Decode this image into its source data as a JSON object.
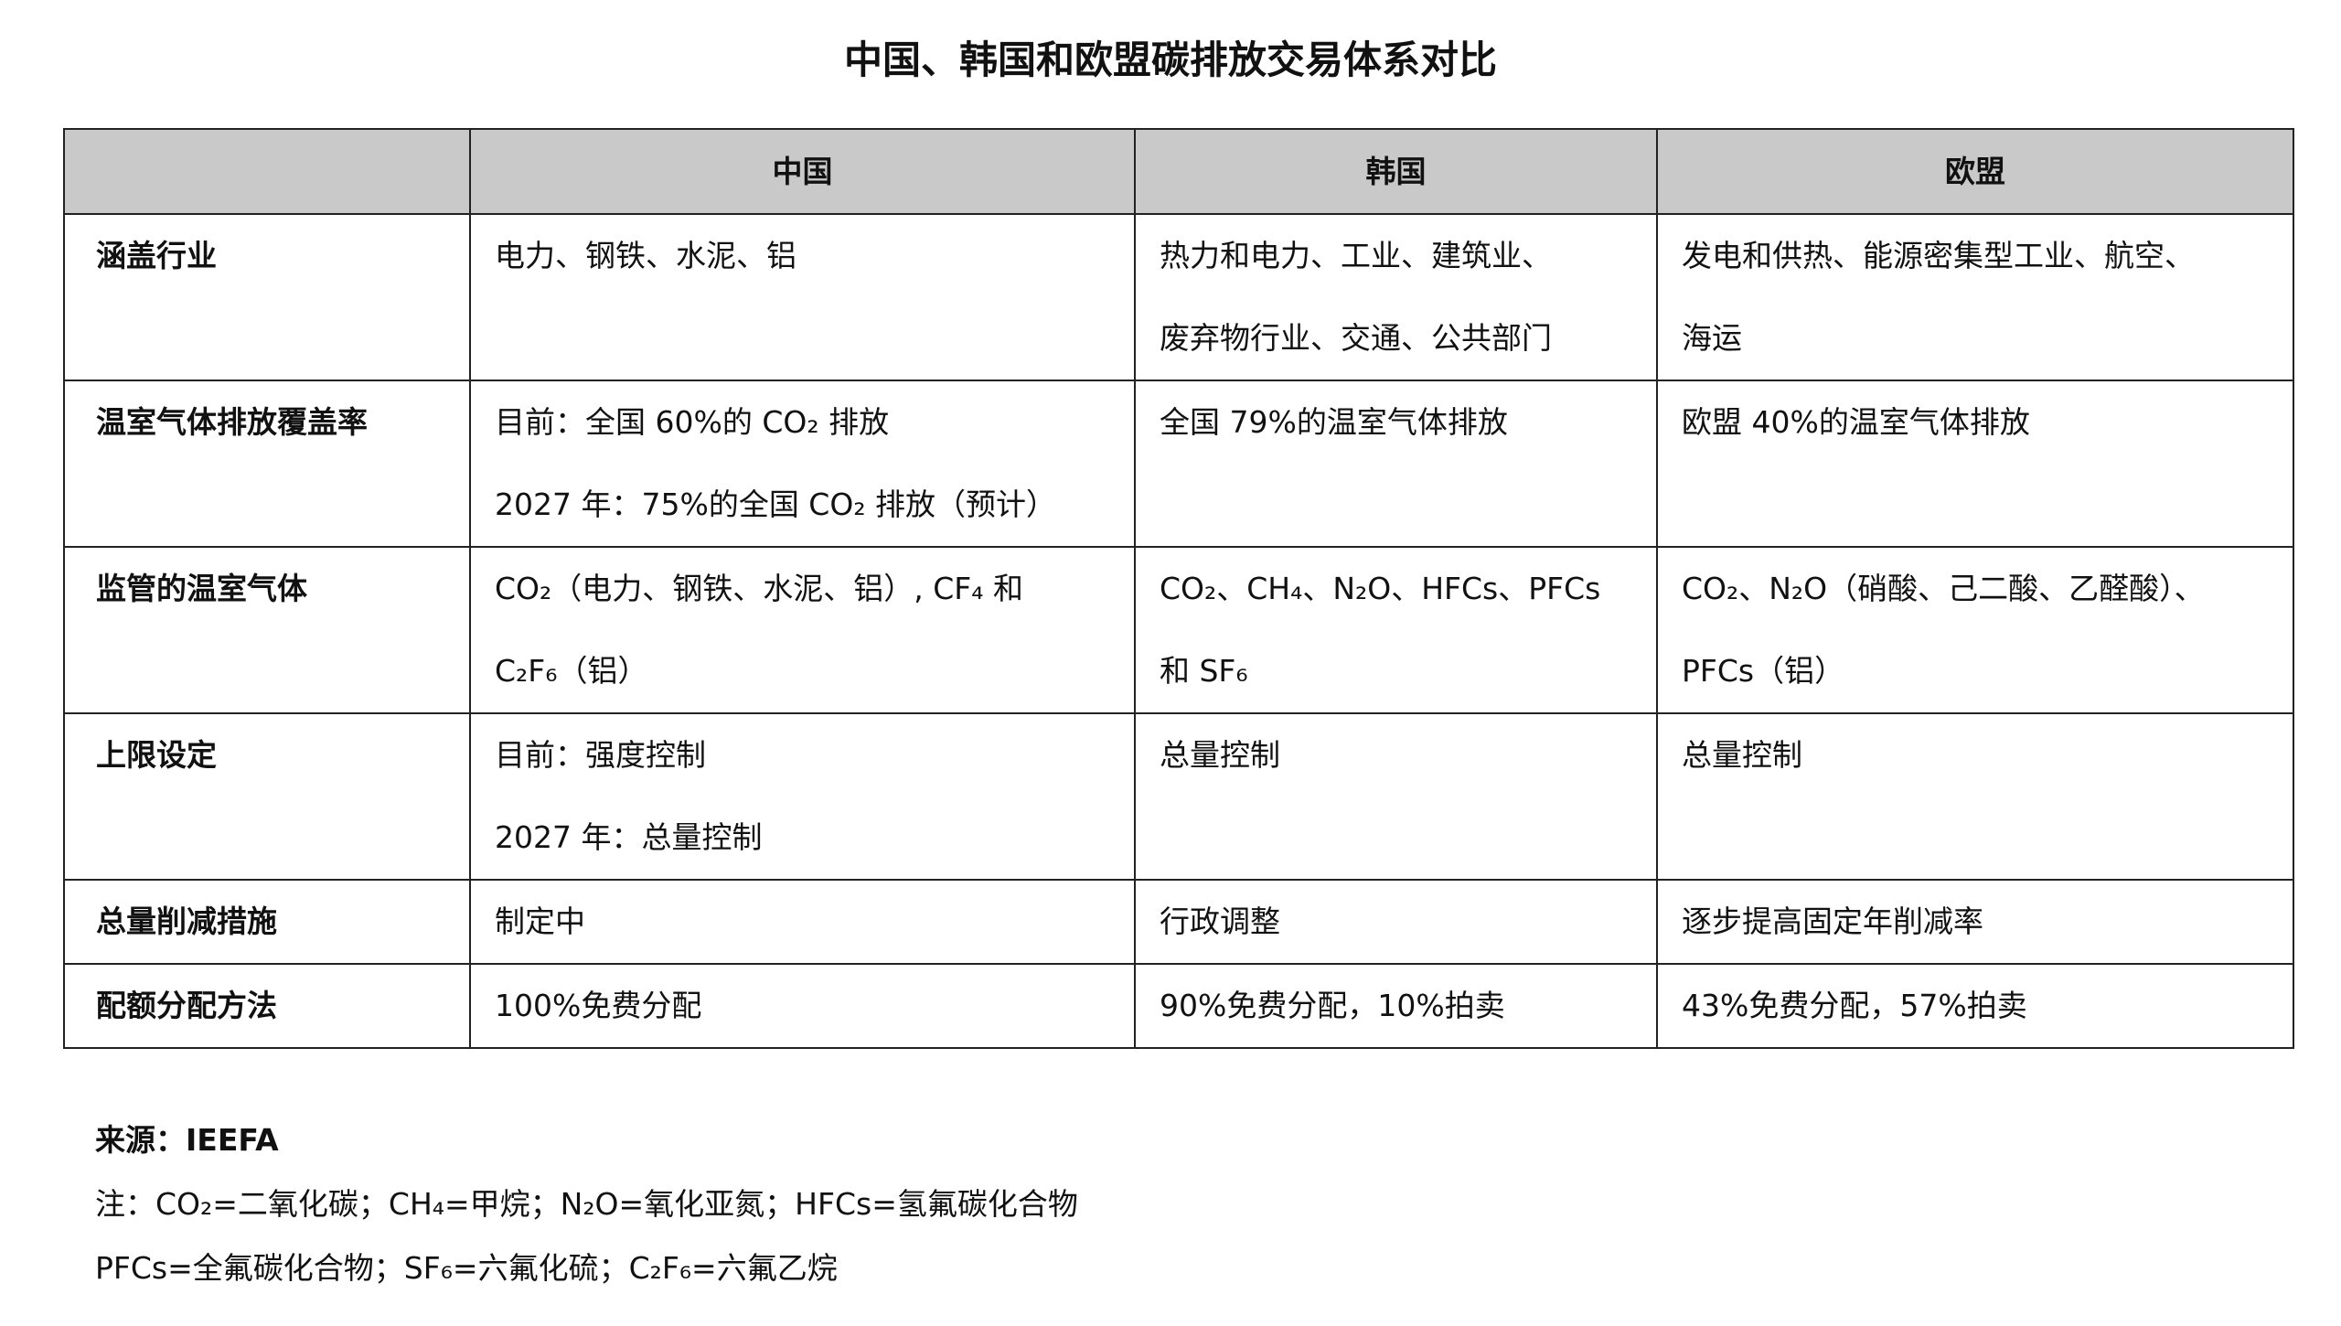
{
  "title": "中国、韩国和欧盟碳排放交易体系对比",
  "table": {
    "headers": [
      "",
      "中国",
      "韩国",
      "欧盟"
    ],
    "rows": [
      {
        "label": "涵盖行业",
        "cells": [
          [
            "电力、钢铁、水泥、铝"
          ],
          [
            "热力和电力、工业、建筑业、",
            "废弃物行业、交通、公共部门"
          ],
          [
            "发电和供热、能源密集型工业、航空、",
            "海运"
          ]
        ]
      },
      {
        "label": "温室气体排放覆盖率",
        "cells": [
          [
            "目前：全国 60%的 CO₂ 排放",
            "2027 年：75%的全国 CO₂ 排放（预计）"
          ],
          [
            "全国 79%的温室气体排放"
          ],
          [
            "欧盟 40%的温室气体排放"
          ]
        ]
      },
      {
        "label": "监管的温室气体",
        "cells": [
          [
            "CO₂（电力、钢铁、水泥、铝）, CF₄ 和",
            "C₂F₆（铝）"
          ],
          [
            "CO₂、CH₄、N₂O、HFCs、PFCs",
            "和 SF₆"
          ],
          [
            "CO₂、N₂O（硝酸、己二酸、乙醛酸）、",
            "PFCs（铝）"
          ]
        ]
      },
      {
        "label": "上限设定",
        "cells": [
          [
            "目前：强度控制",
            "2027 年：总量控制"
          ],
          [
            "总量控制"
          ],
          [
            "总量控制"
          ]
        ]
      },
      {
        "label": "总量削减措施",
        "cells": [
          [
            "制定中"
          ],
          [
            "行政调整"
          ],
          [
            "逐步提高固定年削减率"
          ]
        ]
      },
      {
        "label": "配额分配方法",
        "cells": [
          [
            "100%免费分配"
          ],
          [
            "90%免费分配，10%拍卖"
          ],
          [
            "43%免费分配，57%拍卖"
          ]
        ]
      }
    ]
  },
  "notes": {
    "source": "来源：IEEFA",
    "line1": "注：CO₂=二氧化碳；CH₄=甲烷；N₂O=氧化亚氮；HFCs=氢氟碳化合物",
    "line2": "PFCs=全氟碳化合物；SF₆=六氟化硫；C₂F₆=六氟乙烷"
  },
  "colors": {
    "header_bg": "#c9c9c9",
    "border": "#222222"
  }
}
